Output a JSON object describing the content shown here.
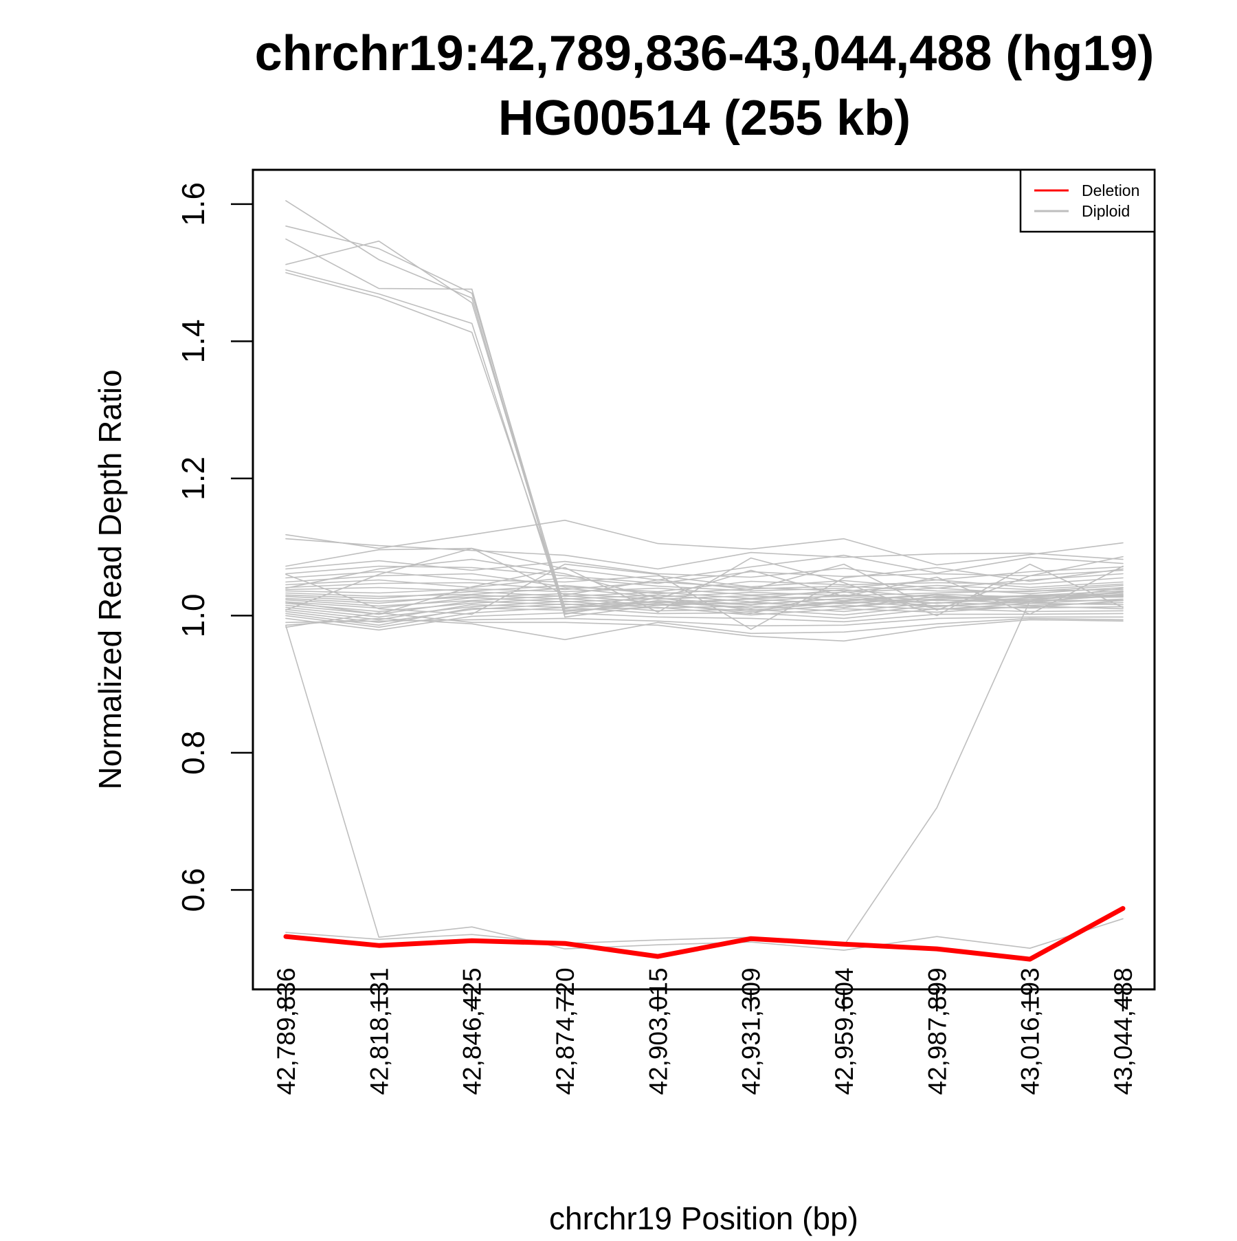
{
  "chart_data": {
    "type": "line",
    "title_line1": "chrchr19:42,789,836-43,044,488 (hg19)",
    "title_line2": "HG00514 (255 kb)",
    "xlabel": "chrchr19 Position (bp)",
    "ylabel": "Normalized Read Depth Ratio",
    "x": [
      42789836,
      42818131,
      42846425,
      42874720,
      42903015,
      42931309,
      42959604,
      42987899,
      43016193,
      43044488
    ],
    "x_tick_labels": [
      "42,789,836",
      "42,818,131",
      "42,846,425",
      "42,874,720",
      "42,903,015",
      "42,931,309",
      "42,959,604",
      "42,987,899",
      "43,016,193",
      "43,044,488"
    ],
    "y_ticks": [
      0.6,
      0.8,
      1.0,
      1.2,
      1.4,
      1.6
    ],
    "y_tick_labels": [
      "0.6",
      "0.8",
      "1.0",
      "1.2",
      "1.4",
      "1.6"
    ],
    "ylim": [
      0.455,
      1.65
    ],
    "grid": false,
    "legend": {
      "position": "top-right",
      "entries": [
        {
          "label": "Deletion",
          "color": "#ff0000"
        },
        {
          "label": "Diploid",
          "color": "#bebebe"
        }
      ]
    },
    "colors": {
      "deletion": "#ff0000",
      "diploid": "#bebebe"
    },
    "series": [
      {
        "name": "Deletion",
        "values": [
          0.532,
          0.519,
          0.526,
          0.522,
          0.503,
          0.529,
          0.521,
          0.514,
          0.499,
          0.573
        ]
      },
      {
        "name": "Diploid",
        "values": [
          1.605,
          1.519,
          1.463,
          1.003,
          1.022,
          1.011,
          1.021,
          1.03,
          1.018,
          1.035
        ]
      },
      {
        "name": "Diploid",
        "values": [
          1.568,
          1.535,
          1.47,
          1.01,
          1.03,
          1.02,
          1.012,
          1.028,
          1.022,
          1.04
        ]
      },
      {
        "name": "Diploid",
        "values": [
          1.549,
          1.477,
          1.476,
          0.998,
          1.015,
          1.025,
          1.028,
          1.018,
          1.03,
          1.028
        ]
      },
      {
        "name": "Diploid",
        "values": [
          1.512,
          1.546,
          1.456,
          1.006,
          1.018,
          1.003,
          1.035,
          1.01,
          1.012,
          1.022
        ]
      },
      {
        "name": "Diploid",
        "values": [
          1.504,
          1.469,
          1.426,
          1.002,
          1.026,
          1.008,
          1.019,
          1.024,
          1.028,
          1.033
        ]
      },
      {
        "name": "Diploid",
        "values": [
          1.5,
          1.464,
          1.413,
          1.012,
          1.02,
          1.016,
          1.025,
          1.014,
          1.02,
          1.03
        ]
      },
      {
        "name": "Diploid",
        "values": [
          0.985,
          0.531,
          0.546,
          0.514,
          0.52,
          0.524,
          0.512,
          0.532,
          0.515,
          0.558
        ]
      },
      {
        "name": "Diploid",
        "values": [
          0.538,
          0.528,
          0.535,
          0.522,
          0.527,
          0.531,
          0.519,
          0.72,
          1.022,
          1.035
        ]
      },
      {
        "name": "Diploid",
        "values": [
          1.118,
          1.098,
          1.118,
          1.139,
          1.105,
          1.097,
          1.112,
          1.074,
          1.089,
          1.106
        ]
      },
      {
        "name": "Diploid",
        "values": [
          1.112,
          1.102,
          1.095,
          1.088,
          1.068,
          1.092,
          1.085,
          1.09,
          1.091,
          1.082
        ]
      },
      {
        "name": "Diploid",
        "values": [
          1.072,
          1.096,
          1.098,
          1.068,
          1.052,
          1.071,
          1.088,
          1.062,
          1.085,
          1.076
        ]
      },
      {
        "name": "Diploid",
        "values": [
          1.068,
          1.08,
          1.066,
          1.079,
          1.061,
          1.056,
          1.069,
          1.052,
          1.064,
          1.071
        ]
      },
      {
        "name": "Diploid",
        "values": [
          1.061,
          1.072,
          1.07,
          1.058,
          1.047,
          1.064,
          1.057,
          1.061,
          1.058,
          1.066
        ]
      },
      {
        "name": "Diploid",
        "values": [
          1.055,
          1.064,
          1.052,
          1.049,
          1.058,
          1.042,
          1.051,
          1.04,
          1.052,
          1.061
        ]
      },
      {
        "name": "Diploid",
        "values": [
          1.049,
          1.058,
          1.061,
          1.042,
          1.035,
          1.05,
          1.045,
          1.048,
          1.046,
          1.055
        ]
      },
      {
        "name": "Diploid",
        "values": [
          1.045,
          1.052,
          1.041,
          1.055,
          1.043,
          1.036,
          1.04,
          1.052,
          1.041,
          1.049
        ]
      },
      {
        "name": "Diploid",
        "values": [
          1.041,
          1.047,
          1.048,
          1.038,
          1.049,
          1.041,
          1.036,
          1.044,
          1.038,
          1.046
        ]
      },
      {
        "name": "Diploid",
        "values": [
          1.038,
          1.041,
          1.036,
          1.044,
          1.032,
          1.039,
          1.043,
          1.036,
          1.035,
          1.044
        ]
      },
      {
        "name": "Diploid",
        "values": [
          1.036,
          1.033,
          1.039,
          1.035,
          1.04,
          1.03,
          1.034,
          1.04,
          1.032,
          1.041
        ]
      },
      {
        "name": "Diploid",
        "values": [
          1.033,
          1.028,
          1.031,
          1.04,
          1.027,
          1.034,
          1.029,
          1.033,
          1.036,
          1.038
        ]
      },
      {
        "name": "Diploid",
        "values": [
          1.03,
          1.025,
          1.035,
          1.028,
          1.034,
          1.025,
          1.038,
          1.026,
          1.029,
          1.036
        ]
      },
      {
        "name": "Diploid",
        "values": [
          1.028,
          1.021,
          1.027,
          1.032,
          1.024,
          1.029,
          1.022,
          1.031,
          1.027,
          1.033
        ]
      },
      {
        "name": "Diploid",
        "values": [
          1.025,
          1.018,
          1.03,
          1.024,
          1.03,
          1.02,
          1.03,
          1.022,
          1.024,
          1.031
        ]
      },
      {
        "name": "Diploid",
        "values": [
          1.023,
          1.014,
          1.022,
          1.029,
          1.019,
          1.024,
          1.017,
          1.027,
          1.021,
          1.029
        ]
      },
      {
        "name": "Diploid",
        "values": [
          1.02,
          1.011,
          1.026,
          1.02,
          1.025,
          1.016,
          1.025,
          1.018,
          1.026,
          1.027
        ]
      },
      {
        "name": "Diploid",
        "values": [
          1.018,
          1.006,
          1.018,
          1.025,
          1.015,
          1.019,
          1.012,
          1.023,
          1.018,
          1.024
        ]
      },
      {
        "name": "Diploid",
        "values": [
          1.015,
          1.002,
          1.021,
          1.016,
          1.02,
          1.011,
          1.02,
          1.013,
          1.022,
          1.022
        ]
      },
      {
        "name": "Diploid",
        "values": [
          1.012,
          0.998,
          1.013,
          1.021,
          1.011,
          1.014,
          1.006,
          1.019,
          1.015,
          1.019
        ]
      },
      {
        "name": "Diploid",
        "values": [
          1.009,
          0.994,
          1.016,
          1.012,
          1.016,
          1.006,
          1.015,
          1.009,
          1.018,
          1.016
        ]
      },
      {
        "name": "Diploid",
        "values": [
          1.006,
          0.99,
          1.009,
          1.017,
          1.007,
          1.009,
          1.001,
          1.015,
          1.011,
          1.013
        ]
      },
      {
        "name": "Diploid",
        "values": [
          1.003,
          0.986,
          1.011,
          1.008,
          1.012,
          1.001,
          1.01,
          1.005,
          1.014,
          1.01
        ]
      },
      {
        "name": "Diploid",
        "values": [
          1.0,
          0.983,
          1.004,
          1.012,
          1.003,
          1.004,
          0.996,
          1.01,
          1.006,
          1.007
        ]
      },
      {
        "name": "Diploid",
        "values": [
          0.996,
          0.979,
          0.999,
          1.004,
          0.998,
          0.996,
          0.991,
          1.002,
          1.002,
          1.003
        ]
      },
      {
        "name": "Diploid",
        "values": [
          0.99,
          0.992,
          0.994,
          0.996,
          0.992,
          0.985,
          0.986,
          0.996,
          0.998,
          0.998
        ]
      },
      {
        "name": "Diploid",
        "values": [
          0.986,
          0.996,
          0.988,
          0.965,
          0.99,
          0.974,
          0.976,
          0.988,
          0.996,
          0.994
        ]
      },
      {
        "name": "Diploid",
        "values": [
          0.983,
          1.004,
          0.99,
          0.99,
          0.986,
          0.97,
          0.963,
          0.983,
          0.994,
          0.992
        ]
      },
      {
        "name": "Diploid",
        "values": [
          1.008,
          1.06,
          1.098,
          1.03,
          1.052,
          1.038,
          1.075,
          1.008,
          1.058,
          1.086
        ]
      },
      {
        "name": "Diploid",
        "values": [
          1.04,
          1.068,
          1.082,
          1.061,
          1.025,
          1.066,
          1.028,
          1.056,
          1.002,
          1.072
        ]
      },
      {
        "name": "Diploid",
        "values": [
          1.02,
          1.002,
          1.042,
          1.07,
          1.005,
          1.084,
          1.048,
          1.0,
          1.075,
          1.012
        ]
      },
      {
        "name": "Diploid",
        "values": [
          1.06,
          1.01,
          1.002,
          1.075,
          1.06,
          0.98,
          1.055,
          1.07,
          1.05,
          1.068
        ]
      }
    ]
  }
}
